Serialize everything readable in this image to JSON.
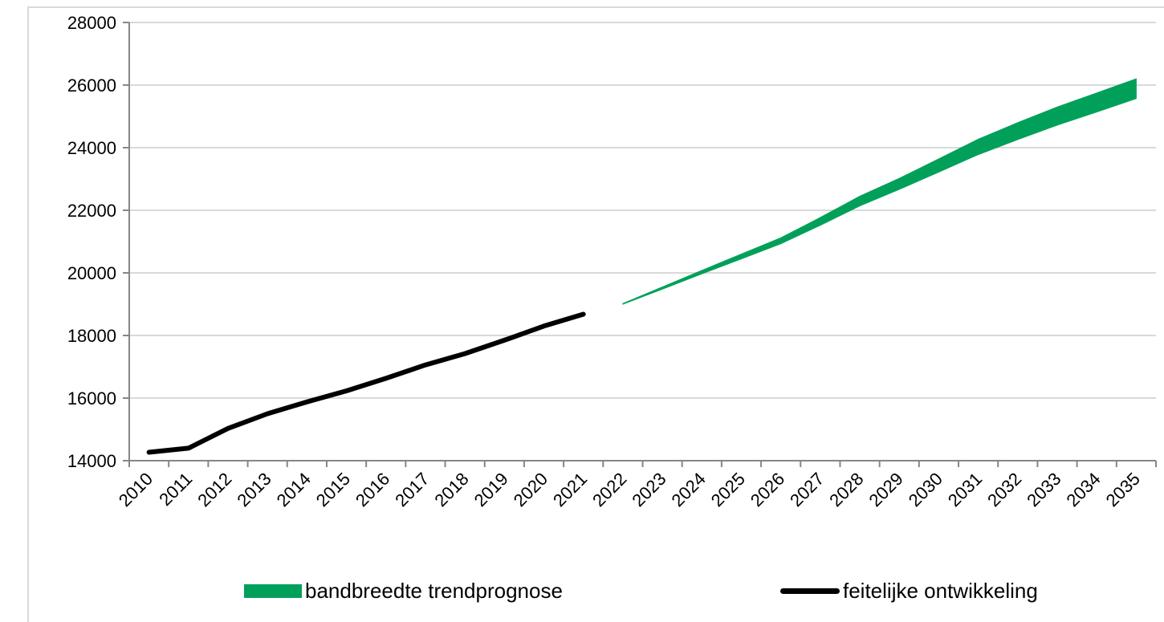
{
  "chart_data": {
    "type": "area",
    "title": "",
    "xlabel": "",
    "ylabel": "",
    "ylim": [
      14000,
      28000
    ],
    "yticks": [
      14000,
      16000,
      18000,
      20000,
      22000,
      24000,
      26000,
      28000
    ],
    "categories": [
      "2010",
      "2011",
      "2012",
      "2013",
      "2014",
      "2015",
      "2016",
      "2017",
      "2018",
      "2019",
      "2020",
      "2021",
      "2022",
      "2023",
      "2024",
      "2025",
      "2026",
      "2027",
      "2028",
      "2029",
      "2030",
      "2031",
      "2032",
      "2033",
      "2034",
      "2035"
    ],
    "grid": true,
    "legend_position": "bottom",
    "series": [
      {
        "name": "bandbreedte trendprognose",
        "kind": "band",
        "color": "#00a05a",
        "x": [
          "2022",
          "2023",
          "2024",
          "2025",
          "2026",
          "2027",
          "2028",
          "2029",
          "2030",
          "2031",
          "2032",
          "2033",
          "2034",
          "2035"
        ],
        "low": [
          19000,
          19480,
          19970,
          20450,
          20930,
          21520,
          22140,
          22670,
          23220,
          23780,
          24260,
          24720,
          25140,
          25570
        ],
        "high": [
          19020,
          19550,
          20080,
          20600,
          21120,
          21770,
          22450,
          23020,
          23640,
          24270,
          24800,
          25300,
          25750,
          26200
        ]
      },
      {
        "name": "feitelijke ontwikkeling",
        "kind": "line",
        "color": "#000000",
        "x": [
          "2010",
          "2011",
          "2012",
          "2013",
          "2014",
          "2015",
          "2016",
          "2017",
          "2018",
          "2019",
          "2020",
          "2021"
        ],
        "values": [
          14270,
          14400,
          15030,
          15500,
          15880,
          16230,
          16630,
          17060,
          17420,
          17850,
          18300,
          18680
        ]
      }
    ]
  }
}
